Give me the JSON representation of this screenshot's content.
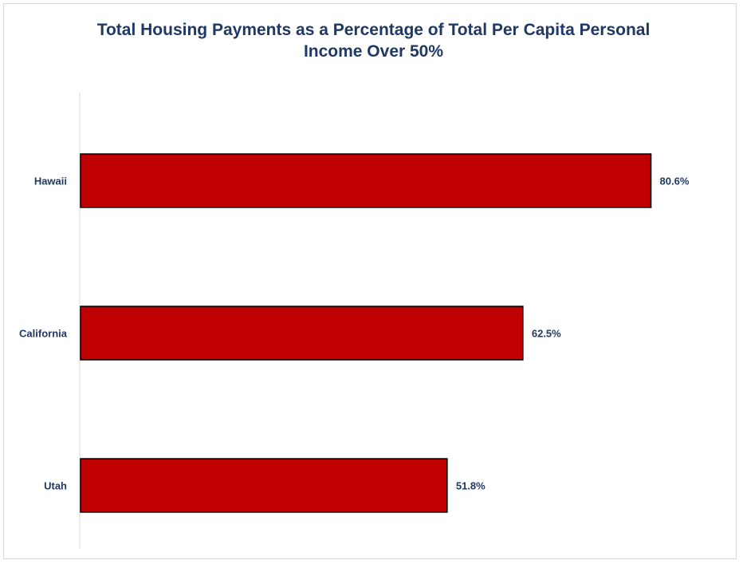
{
  "colors": {
    "bar_fill": "#c00000",
    "bar_stroke": "#000000",
    "title": "#1f3864",
    "label": "#1f3864",
    "axis": "#d9d9d9"
  },
  "chart_data": {
    "type": "bar",
    "orientation": "horizontal",
    "title_lines": [
      "Total Housing Payments as a Percentage of Total Per Capita Personal",
      "Income Over 50%"
    ],
    "categories": [
      "Hawaii",
      "California",
      "Utah"
    ],
    "values": [
      80.6,
      62.5,
      51.8
    ],
    "data_labels": [
      "80.6%",
      "62.5%",
      "51.8%"
    ],
    "xlabel": "",
    "ylabel": "",
    "xlim": [
      0,
      90
    ],
    "grid": false,
    "legend": "none"
  }
}
